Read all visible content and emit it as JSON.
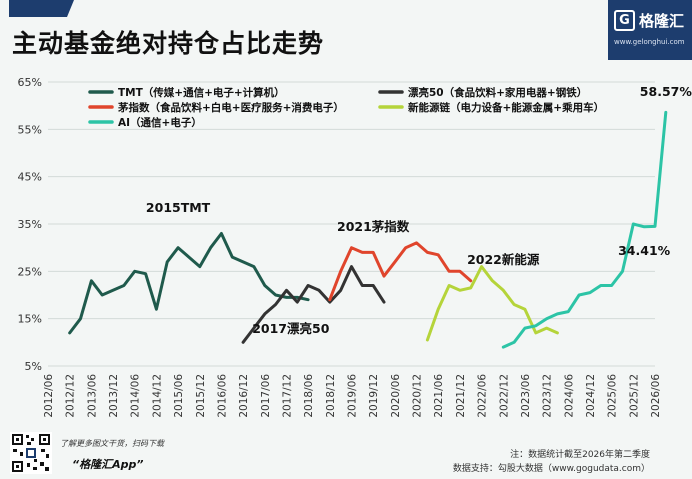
{
  "header": {
    "title": "主动基金绝对持仓占比走势",
    "accent_color": "#1d3d6e"
  },
  "logo": {
    "name": "格隆汇",
    "url": "www.gelonghui.com"
  },
  "chart_data": {
    "type": "line",
    "title": "主动基金绝对持仓占比走势",
    "y_ticks": [
      "65%",
      "55%",
      "45%",
      "35%",
      "25%",
      "15%",
      "5%"
    ],
    "ylim": [
      5,
      65
    ],
    "x_ticks": [
      "2012/06",
      "2012/12",
      "2013/06",
      "2013/12",
      "2014/06",
      "2014/12",
      "2015/06",
      "2015/12",
      "2016/06",
      "2016/12",
      "2017/06",
      "2017/12",
      "2018/06",
      "2018/12",
      "2019/06",
      "2019/12",
      "2020/06",
      "2020/12",
      "2021/06",
      "2021/12",
      "2022/06",
      "2022/12",
      "2023/06",
      "2023/12",
      "2024/06",
      "2024/12",
      "2025/06",
      "2025/12",
      "2026/06"
    ],
    "grid": true,
    "legend_position": "top",
    "series": [
      {
        "name": "TMT（传媒+通信+电子+计算机）",
        "color": "#1f5a4c",
        "values": [
          [
            2013.0,
            12
          ],
          [
            2013.25,
            15
          ],
          [
            2013.5,
            23
          ],
          [
            2013.75,
            20
          ],
          [
            2014.0,
            21
          ],
          [
            2014.25,
            22
          ],
          [
            2014.5,
            25
          ],
          [
            2014.75,
            24.5
          ],
          [
            2015.0,
            17
          ],
          [
            2015.25,
            27
          ],
          [
            2015.5,
            30
          ],
          [
            2015.75,
            28
          ],
          [
            2016.0,
            26
          ],
          [
            2016.25,
            30
          ],
          [
            2016.5,
            33
          ],
          [
            2016.75,
            28
          ],
          [
            2017.0,
            27
          ],
          [
            2017.25,
            26
          ],
          [
            2017.5,
            22
          ],
          [
            2017.75,
            20
          ],
          [
            2018.0,
            19.5
          ],
          [
            2018.25,
            19.5
          ],
          [
            2018.5,
            19
          ]
        ]
      },
      {
        "name": "漂亮50（食品饮料+家用电器+钢铁）",
        "color": "#333333",
        "values": [
          [
            2017.0,
            10
          ],
          [
            2017.25,
            13
          ],
          [
            2017.5,
            16
          ],
          [
            2017.75,
            18
          ],
          [
            2018.0,
            21
          ],
          [
            2018.25,
            18.5
          ],
          [
            2018.5,
            22
          ],
          [
            2018.75,
            21
          ],
          [
            2019.0,
            18.5
          ],
          [
            2019.25,
            21
          ],
          [
            2019.5,
            26
          ],
          [
            2019.75,
            22
          ],
          [
            2020.0,
            22
          ],
          [
            2020.25,
            18.5
          ]
        ]
      },
      {
        "name": "茅指数（食品饮料+白电+医疗服务+消费电子）",
        "color": "#e0452c",
        "values": [
          [
            2019.0,
            19
          ],
          [
            2019.25,
            25
          ],
          [
            2019.5,
            30
          ],
          [
            2019.75,
            29
          ],
          [
            2020.0,
            29
          ],
          [
            2020.25,
            24
          ],
          [
            2020.5,
            27
          ],
          [
            2020.75,
            30
          ],
          [
            2021.0,
            31
          ],
          [
            2021.25,
            29
          ],
          [
            2021.5,
            28.5
          ],
          [
            2021.75,
            25
          ],
          [
            2022.0,
            25
          ],
          [
            2022.25,
            23
          ]
        ]
      },
      {
        "name": "新能源链（电力设备+能源金属+乘用车）",
        "color": "#b5d43a",
        "values": [
          [
            2021.25,
            10.5
          ],
          [
            2021.5,
            17
          ],
          [
            2021.75,
            22
          ],
          [
            2022.0,
            21
          ],
          [
            2022.25,
            21.5
          ],
          [
            2022.5,
            26
          ],
          [
            2022.75,
            23
          ],
          [
            2023.0,
            21
          ],
          [
            2023.25,
            18
          ],
          [
            2023.5,
            17
          ],
          [
            2023.75,
            12
          ],
          [
            2024.0,
            13
          ],
          [
            2024.25,
            12
          ]
        ]
      },
      {
        "name": "AI（通信+电子）",
        "color": "#2cc4a6",
        "values": [
          [
            2023.0,
            9
          ],
          [
            2023.25,
            10
          ],
          [
            2023.5,
            13
          ],
          [
            2023.75,
            13.5
          ],
          [
            2024.0,
            15
          ],
          [
            2024.25,
            16
          ],
          [
            2024.5,
            16.5
          ],
          [
            2024.75,
            20
          ],
          [
            2025.0,
            20.5
          ],
          [
            2025.25,
            22
          ],
          [
            2025.5,
            22
          ],
          [
            2025.75,
            25
          ],
          [
            2026.0,
            35
          ],
          [
            2026.25,
            34.41
          ],
          [
            2026.5,
            34.5
          ],
          [
            2026.75,
            58.57
          ]
        ]
      }
    ],
    "annotations": [
      {
        "text": "2015TMT",
        "x": 2015.5,
        "y": 37.5
      },
      {
        "text": "2017漂亮50",
        "x": 2018.1,
        "y": 12
      },
      {
        "text": "2021茅指数",
        "x": 2020.0,
        "y": 33.5
      },
      {
        "text": "2022新能源",
        "x": 2023.0,
        "y": 26.5
      },
      {
        "text": "58.57%",
        "x": 2026.75,
        "y": 62
      },
      {
        "text": "34.41%",
        "x": 2026.25,
        "y": 28.5
      }
    ]
  },
  "footer": {
    "promo": "了解更多图文干货，扫码下载",
    "app": "“格隆汇App”",
    "note": "注：数据统计截至2026年第二季度",
    "source": "数据支持：勾股大数据（www.gogudata.com）"
  }
}
